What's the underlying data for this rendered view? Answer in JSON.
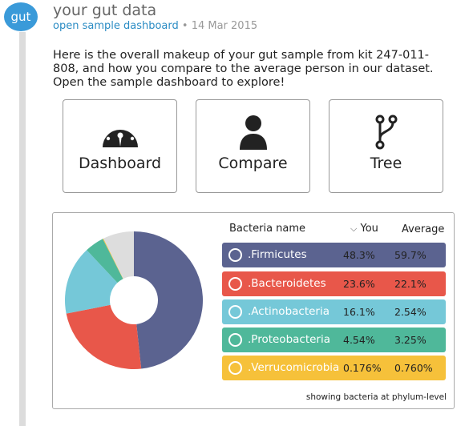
{
  "post": {
    "avatar_label": "gut",
    "title": "your gut data",
    "link": "open sample dashboard",
    "date": "• 14 Mar 2015",
    "description": "Here is the overall makeup of your gut sample from kit 247-011-808, and how you compare to the average person in our dataset. Open the sample dashboard to explore!"
  },
  "tiles": [
    {
      "label": "Dashboard",
      "icon": "gauge-icon"
    },
    {
      "label": "Compare",
      "icon": "person-icon"
    },
    {
      "label": "Tree",
      "icon": "branch-icon"
    }
  ],
  "table": {
    "col_name": "Bacteria name",
    "sort_icon": "⌵",
    "col_you": "You",
    "col_avg": "Average",
    "footnote": "showing bacteria at phylum-level",
    "rows": [
      {
        "name": ".Firmicutes",
        "you": "48.3%",
        "avg": "59.7%",
        "color": "#5b6390"
      },
      {
        "name": ".Bacteroidetes",
        "you": "23.6%",
        "avg": "22.1%",
        "color": "#e8574a"
      },
      {
        "name": ".Actinobacteria",
        "you": "16.1%",
        "avg": "2.54%",
        "color": "#75c8d8"
      },
      {
        "name": ".Proteobacteria",
        "you": "4.54%",
        "avg": "3.25%",
        "color": "#4fb89a"
      },
      {
        "name": ".Verrucomicrobia",
        "you": "0.176%",
        "avg": "0.760%",
        "color": "#f6c13a"
      }
    ]
  },
  "chart_data": {
    "type": "pie",
    "categories": [
      ".Firmicutes",
      ".Bacteroidetes",
      ".Actinobacteria",
      ".Proteobacteria",
      ".Verrucomicrobia",
      "other"
    ],
    "values": [
      48.3,
      23.6,
      16.1,
      4.54,
      0.176,
      7.284
    ],
    "colors": [
      "#5b6390",
      "#e8574a",
      "#75c8d8",
      "#4fb89a",
      "#f6c13a",
      "#dddddd"
    ]
  }
}
